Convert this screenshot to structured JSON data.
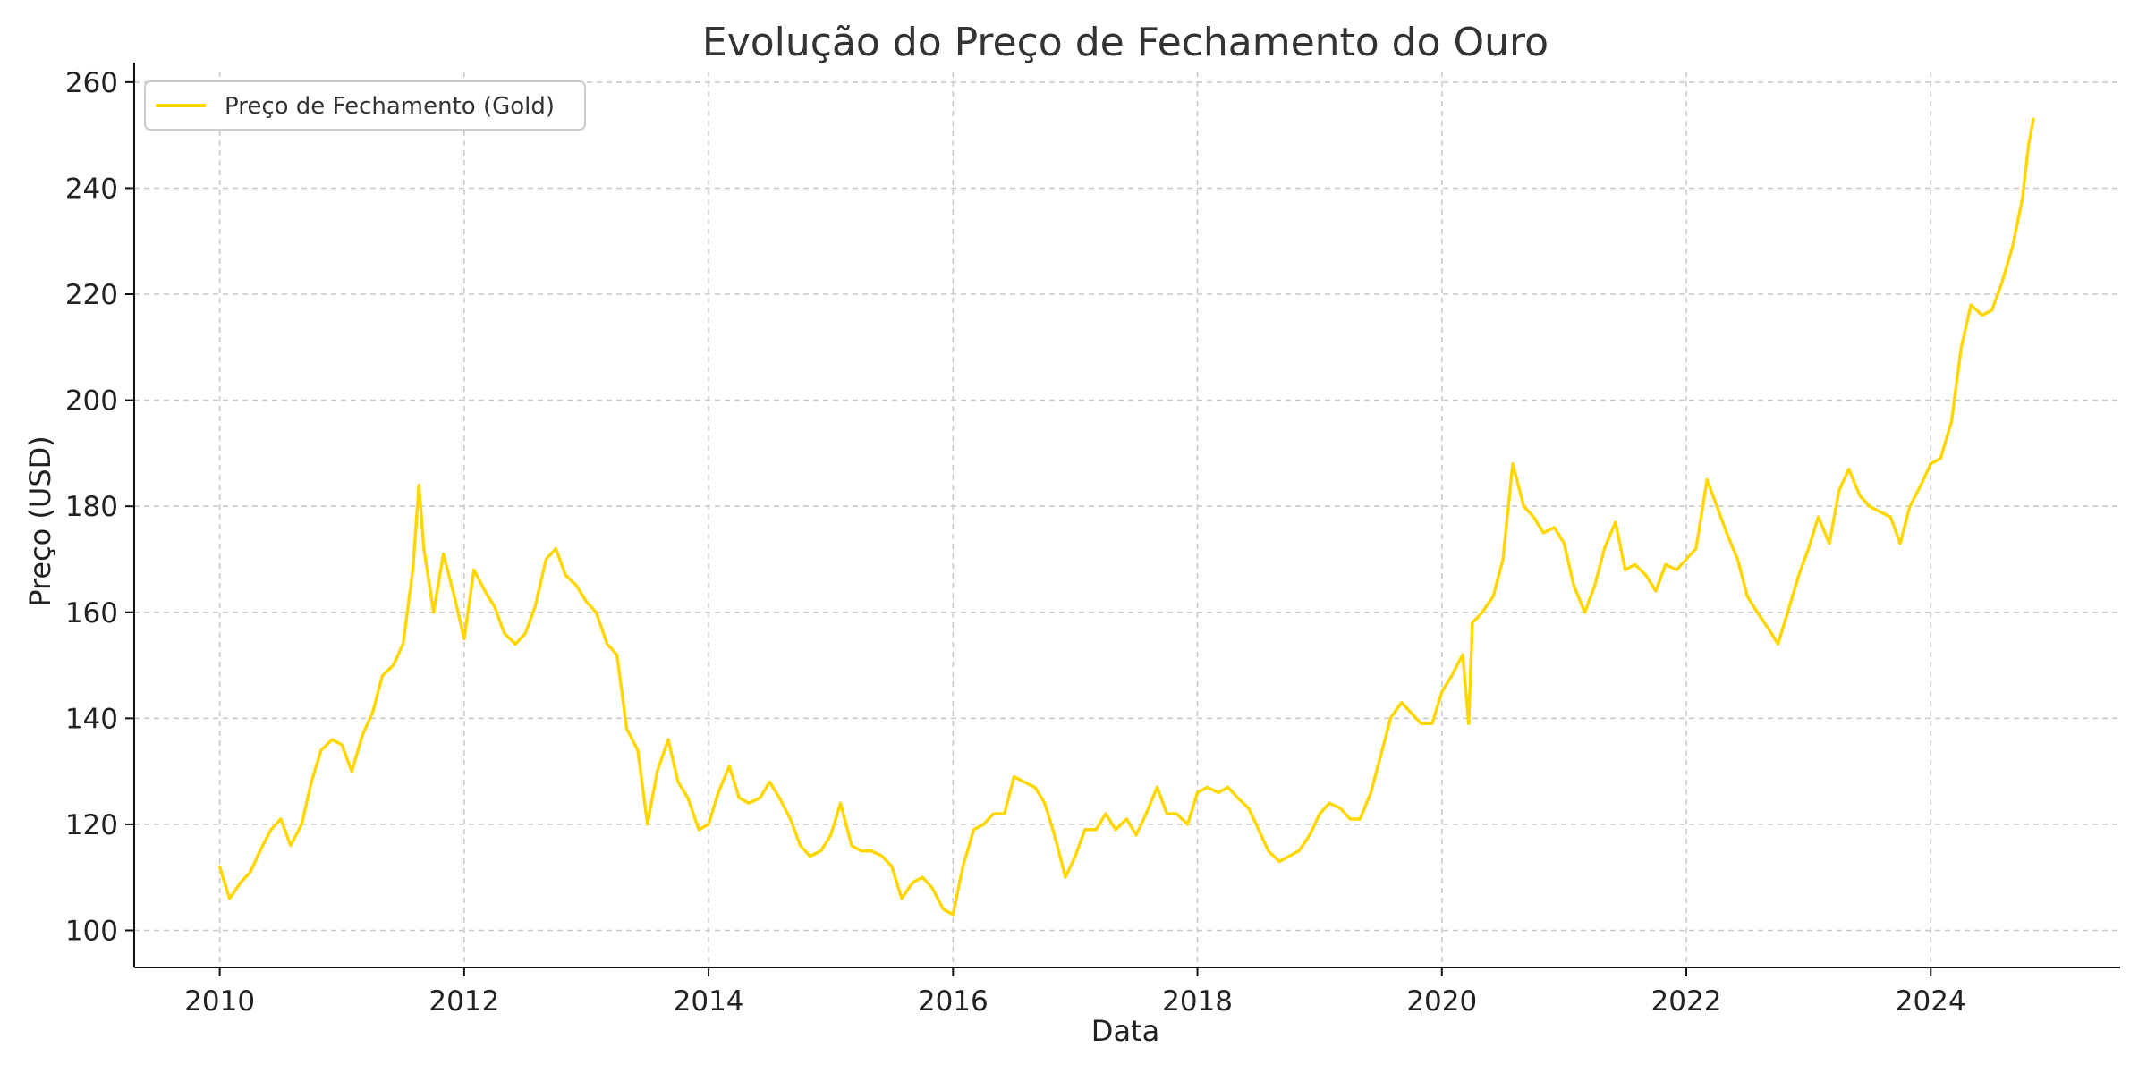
{
  "chart_data": {
    "type": "line",
    "title": "Evolução do Preço de Fechamento do Ouro",
    "xlabel": "Data",
    "ylabel": "Preço (USD)",
    "xlim": [
      2009.3,
      2025.55
    ],
    "ylim": [
      93,
      262
    ],
    "x_ticks": [
      2010,
      2012,
      2014,
      2016,
      2018,
      2020,
      2022,
      2024
    ],
    "x_tick_labels": [
      "2010",
      "2012",
      "2014",
      "2016",
      "2018",
      "2020",
      "2022",
      "2024"
    ],
    "y_ticks": [
      100,
      120,
      140,
      160,
      180,
      200,
      220,
      240,
      260
    ],
    "y_tick_labels": [
      "100",
      "120",
      "140",
      "160",
      "180",
      "200",
      "220",
      "240",
      "260"
    ],
    "grid": true,
    "legend_position": "top-left",
    "series": [
      {
        "name": "Preço de Fechamento (Gold)",
        "color": "#FFD700",
        "points": [
          [
            2010.0,
            112
          ],
          [
            2010.08,
            106
          ],
          [
            2010.17,
            109
          ],
          [
            2010.25,
            111
          ],
          [
            2010.33,
            115
          ],
          [
            2010.42,
            119
          ],
          [
            2010.5,
            121
          ],
          [
            2010.58,
            116
          ],
          [
            2010.67,
            120
          ],
          [
            2010.75,
            128
          ],
          [
            2010.83,
            134
          ],
          [
            2010.92,
            136
          ],
          [
            2011.0,
            135
          ],
          [
            2011.08,
            130
          ],
          [
            2011.17,
            137
          ],
          [
            2011.25,
            141
          ],
          [
            2011.33,
            148
          ],
          [
            2011.42,
            150
          ],
          [
            2011.5,
            154
          ],
          [
            2011.58,
            168
          ],
          [
            2011.63,
            184
          ],
          [
            2011.67,
            172
          ],
          [
            2011.75,
            160
          ],
          [
            2011.83,
            171
          ],
          [
            2011.92,
            163
          ],
          [
            2012.0,
            155
          ],
          [
            2012.08,
            168
          ],
          [
            2012.17,
            164
          ],
          [
            2012.25,
            161
          ],
          [
            2012.33,
            156
          ],
          [
            2012.42,
            154
          ],
          [
            2012.5,
            156
          ],
          [
            2012.58,
            161
          ],
          [
            2012.67,
            170
          ],
          [
            2012.75,
            172
          ],
          [
            2012.83,
            167
          ],
          [
            2012.92,
            165
          ],
          [
            2013.0,
            162
          ],
          [
            2013.08,
            160
          ],
          [
            2013.17,
            154
          ],
          [
            2013.25,
            152
          ],
          [
            2013.33,
            138
          ],
          [
            2013.42,
            134
          ],
          [
            2013.5,
            120
          ],
          [
            2013.58,
            130
          ],
          [
            2013.67,
            136
          ],
          [
            2013.75,
            128
          ],
          [
            2013.83,
            125
          ],
          [
            2013.92,
            119
          ],
          [
            2014.0,
            120
          ],
          [
            2014.08,
            126
          ],
          [
            2014.17,
            131
          ],
          [
            2014.25,
            125
          ],
          [
            2014.33,
            124
          ],
          [
            2014.42,
            125
          ],
          [
            2014.5,
            128
          ],
          [
            2014.58,
            125
          ],
          [
            2014.67,
            121
          ],
          [
            2014.75,
            116
          ],
          [
            2014.83,
            114
          ],
          [
            2014.92,
            115
          ],
          [
            2015.0,
            118
          ],
          [
            2015.08,
            124
          ],
          [
            2015.17,
            116
          ],
          [
            2015.25,
            115
          ],
          [
            2015.33,
            115
          ],
          [
            2015.42,
            114
          ],
          [
            2015.5,
            112
          ],
          [
            2015.58,
            106
          ],
          [
            2015.67,
            109
          ],
          [
            2015.75,
            110
          ],
          [
            2015.83,
            108
          ],
          [
            2015.92,
            104
          ],
          [
            2016.0,
            103
          ],
          [
            2016.08,
            112
          ],
          [
            2016.17,
            119
          ],
          [
            2016.25,
            120
          ],
          [
            2016.33,
            122
          ],
          [
            2016.42,
            122
          ],
          [
            2016.5,
            129
          ],
          [
            2016.58,
            128
          ],
          [
            2016.67,
            127
          ],
          [
            2016.75,
            124
          ],
          [
            2016.83,
            118
          ],
          [
            2016.92,
            110
          ],
          [
            2017.0,
            114
          ],
          [
            2017.08,
            119
          ],
          [
            2017.17,
            119
          ],
          [
            2017.25,
            122
          ],
          [
            2017.33,
            119
          ],
          [
            2017.42,
            121
          ],
          [
            2017.5,
            118
          ],
          [
            2017.58,
            122
          ],
          [
            2017.67,
            127
          ],
          [
            2017.75,
            122
          ],
          [
            2017.83,
            122
          ],
          [
            2017.92,
            120
          ],
          [
            2018.0,
            126
          ],
          [
            2018.08,
            127
          ],
          [
            2018.17,
            126
          ],
          [
            2018.25,
            127
          ],
          [
            2018.33,
            125
          ],
          [
            2018.42,
            123
          ],
          [
            2018.5,
            119
          ],
          [
            2018.58,
            115
          ],
          [
            2018.67,
            113
          ],
          [
            2018.75,
            114
          ],
          [
            2018.83,
            115
          ],
          [
            2018.92,
            118
          ],
          [
            2019.0,
            122
          ],
          [
            2019.08,
            124
          ],
          [
            2019.17,
            123
          ],
          [
            2019.25,
            121
          ],
          [
            2019.33,
            121
          ],
          [
            2019.42,
            126
          ],
          [
            2019.5,
            133
          ],
          [
            2019.58,
            140
          ],
          [
            2019.67,
            143
          ],
          [
            2019.75,
            141
          ],
          [
            2019.83,
            139
          ],
          [
            2019.92,
            139
          ],
          [
            2020.0,
            145
          ],
          [
            2020.08,
            148
          ],
          [
            2020.17,
            152
          ],
          [
            2020.22,
            139
          ],
          [
            2020.25,
            158
          ],
          [
            2020.33,
            160
          ],
          [
            2020.42,
            163
          ],
          [
            2020.5,
            170
          ],
          [
            2020.58,
            188
          ],
          [
            2020.67,
            180
          ],
          [
            2020.75,
            178
          ],
          [
            2020.83,
            175
          ],
          [
            2020.92,
            176
          ],
          [
            2021.0,
            173
          ],
          [
            2021.08,
            165
          ],
          [
            2021.17,
            160
          ],
          [
            2021.25,
            165
          ],
          [
            2021.33,
            172
          ],
          [
            2021.42,
            177
          ],
          [
            2021.5,
            168
          ],
          [
            2021.58,
            169
          ],
          [
            2021.67,
            167
          ],
          [
            2021.75,
            164
          ],
          [
            2021.83,
            169
          ],
          [
            2021.92,
            168
          ],
          [
            2022.0,
            170
          ],
          [
            2022.08,
            172
          ],
          [
            2022.17,
            185
          ],
          [
            2022.25,
            180
          ],
          [
            2022.33,
            175
          ],
          [
            2022.42,
            170
          ],
          [
            2022.5,
            163
          ],
          [
            2022.58,
            160
          ],
          [
            2022.67,
            157
          ],
          [
            2022.75,
            154
          ],
          [
            2022.83,
            160
          ],
          [
            2022.92,
            167
          ],
          [
            2023.0,
            172
          ],
          [
            2023.08,
            178
          ],
          [
            2023.17,
            173
          ],
          [
            2023.25,
            183
          ],
          [
            2023.33,
            187
          ],
          [
            2023.42,
            182
          ],
          [
            2023.5,
            180
          ],
          [
            2023.58,
            179
          ],
          [
            2023.67,
            178
          ],
          [
            2023.75,
            173
          ],
          [
            2023.83,
            180
          ],
          [
            2023.92,
            184
          ],
          [
            2024.0,
            188
          ],
          [
            2024.08,
            189
          ],
          [
            2024.17,
            196
          ],
          [
            2024.25,
            210
          ],
          [
            2024.33,
            218
          ],
          [
            2024.42,
            216
          ],
          [
            2024.5,
            217
          ],
          [
            2024.58,
            222
          ],
          [
            2024.67,
            229
          ],
          [
            2024.75,
            238
          ],
          [
            2024.8,
            248
          ],
          [
            2024.84,
            253
          ]
        ]
      }
    ]
  }
}
